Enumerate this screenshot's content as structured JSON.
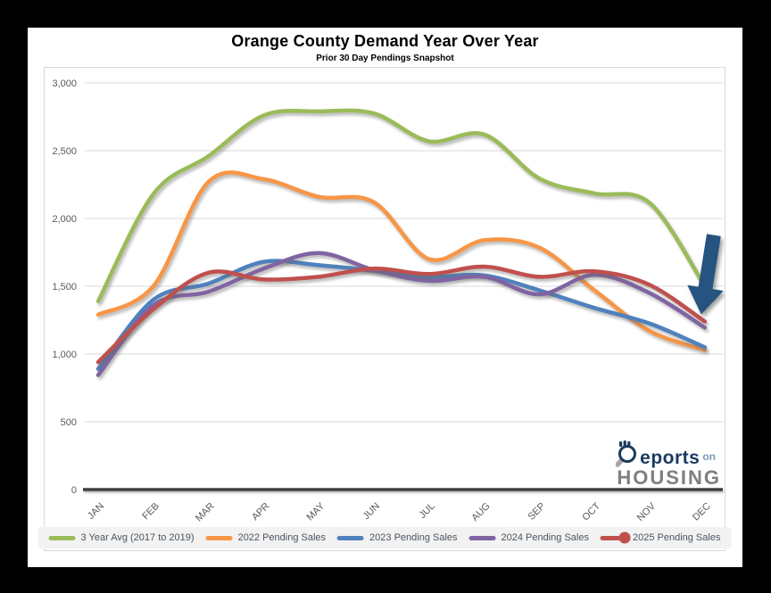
{
  "chart_data": {
    "type": "line",
    "title": "Orange County Demand Year Over Year",
    "subtitle": "Prior 30 Day Pendings Snapshot",
    "categories": [
      "JAN",
      "FEB",
      "MAR",
      "APR",
      "MAY",
      "JUN",
      "JUL",
      "AUG",
      "SEP",
      "OCT",
      "NOV",
      "DEC"
    ],
    "y_axis": {
      "min": 0,
      "max": 3000,
      "tick_step": 500,
      "ticks": [
        {
          "value": 3000,
          "label": "3,000"
        },
        {
          "value": 2500,
          "label": "2,500"
        },
        {
          "value": 2000,
          "label": "2,000"
        },
        {
          "value": 1500,
          "label": "1,500"
        },
        {
          "value": 1000,
          "label": "1,000"
        },
        {
          "value": 500,
          "label": "500"
        },
        {
          "value": 0,
          "label": "0"
        }
      ]
    },
    "grid": "horizontal",
    "legend_position": "bottom",
    "series": [
      {
        "name": "3 Year Avg (2017 to 2019)",
        "color": "#9BBB59",
        "values": [
          1390,
          2180,
          2460,
          2760,
          2790,
          2775,
          2570,
          2620,
          2295,
          2185,
          2115,
          1500
        ]
      },
      {
        "name": "2022 Pending Sales",
        "color": "#F79646",
        "values": [
          1290,
          1500,
          2270,
          2290,
          2160,
          2120,
          1700,
          1840,
          1785,
          1470,
          1170,
          1030
        ]
      },
      {
        "name": "2023 Pending Sales",
        "color": "#4F81BD",
        "values": [
          890,
          1400,
          1520,
          1680,
          1655,
          1615,
          1570,
          1580,
          1470,
          1340,
          1225,
          1050
        ]
      },
      {
        "name": "2024 Pending Sales",
        "color": "#8064A2",
        "values": [
          845,
          1360,
          1460,
          1630,
          1745,
          1620,
          1540,
          1570,
          1440,
          1585,
          1450,
          1195
        ]
      },
      {
        "name": "2025 Pending Sales",
        "color": "#C0504D",
        "end_marker": "dot",
        "values": [
          940,
          1330,
          1600,
          1550,
          1570,
          1630,
          1590,
          1645,
          1570,
          1610,
          1510,
          1240
        ]
      }
    ],
    "annotation": {
      "type": "arrow",
      "color": "#265380",
      "points_to": "latest 2025 Pending Sales value"
    }
  },
  "logo": {
    "text_top": "eports",
    "text_top_small": "on",
    "text_bottom": "HOUSING",
    "icon": "magnifier-r-icon",
    "navy": "#1b3a5e",
    "gray": "#7f7f7f"
  }
}
